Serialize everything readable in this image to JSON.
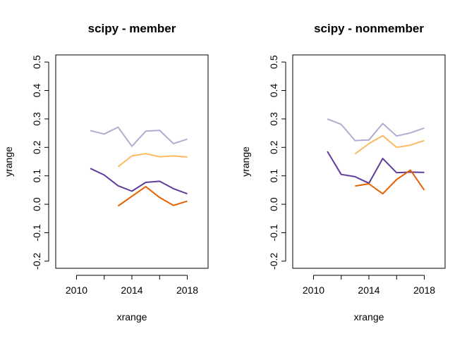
{
  "chart_data": [
    {
      "type": "line",
      "title": "scipy - member",
      "xlabel": "xrange",
      "ylabel": "yrange",
      "xlim": [
        2008.5,
        2019.5
      ],
      "ylim": [
        -0.225,
        0.525
      ],
      "xticks": [
        2010,
        2014,
        2018
      ],
      "xtick_labels": [
        "2010",
        "2014",
        "2018"
      ],
      "yticks": [
        -0.2,
        -0.1,
        0.0,
        0.1,
        0.2,
        0.3,
        0.4,
        0.5
      ],
      "ytick_labels": [
        "-0.2",
        "-0.1",
        "0.0",
        "0.1",
        "0.2",
        "0.3",
        "0.4",
        "0.5"
      ],
      "grid": false,
      "series": [
        {
          "color": "#b2abd2",
          "x": [
            2011,
            2012,
            2013,
            2014,
            2015,
            2016,
            2017,
            2018
          ],
          "y": [
            0.259,
            0.247,
            0.271,
            0.204,
            0.257,
            0.26,
            0.213,
            0.229
          ]
        },
        {
          "color": "#fdb863",
          "x": [
            2013,
            2014,
            2015,
            2016,
            2017,
            2018
          ],
          "y": [
            0.132,
            0.17,
            0.178,
            0.167,
            0.17,
            0.166
          ]
        },
        {
          "color": "#5e3c99",
          "x": [
            2011,
            2012,
            2013,
            2014,
            2015,
            2016,
            2017,
            2018
          ],
          "y": [
            0.126,
            0.103,
            0.065,
            0.046,
            0.077,
            0.081,
            0.055,
            0.037
          ]
        },
        {
          "color": "#e66101",
          "x": [
            2013,
            2014,
            2015,
            2016,
            2017,
            2018
          ],
          "y": [
            -0.006,
            0.028,
            0.062,
            0.024,
            -0.004,
            0.011
          ]
        }
      ]
    },
    {
      "type": "line",
      "title": "scipy - nonmember",
      "xlabel": "xrange",
      "ylabel": "yrange",
      "xlim": [
        2008.5,
        2019.5
      ],
      "ylim": [
        -0.225,
        0.525
      ],
      "xticks": [
        2010,
        2014,
        2018
      ],
      "xtick_labels": [
        "2010",
        "2014",
        "2018"
      ],
      "yticks": [
        -0.2,
        -0.1,
        0.0,
        0.1,
        0.2,
        0.3,
        0.4,
        0.5
      ],
      "ytick_labels": [
        "-0.2",
        "-0.1",
        "0.0",
        "0.1",
        "0.2",
        "0.3",
        "0.4",
        "0.5"
      ],
      "grid": false,
      "series": [
        {
          "color": "#b2abd2",
          "x": [
            2011,
            2012,
            2013,
            2014,
            2015,
            2016,
            2017,
            2018
          ],
          "y": [
            0.3,
            0.281,
            0.224,
            0.226,
            0.284,
            0.24,
            0.251,
            0.268
          ]
        },
        {
          "color": "#fdb863",
          "x": [
            2013,
            2014,
            2015,
            2016,
            2017,
            2018
          ],
          "y": [
            0.177,
            0.213,
            0.241,
            0.2,
            0.208,
            0.224
          ]
        },
        {
          "color": "#5e3c99",
          "x": [
            2011,
            2012,
            2013,
            2014,
            2015,
            2016,
            2017,
            2018
          ],
          "y": [
            0.186,
            0.105,
            0.097,
            0.074,
            0.161,
            0.111,
            0.113,
            0.112
          ]
        },
        {
          "color": "#e66101",
          "x": [
            2013,
            2014,
            2015,
            2016,
            2017,
            2018
          ],
          "y": [
            0.064,
            0.072,
            0.037,
            0.087,
            0.12,
            0.05
          ]
        }
      ]
    }
  ]
}
